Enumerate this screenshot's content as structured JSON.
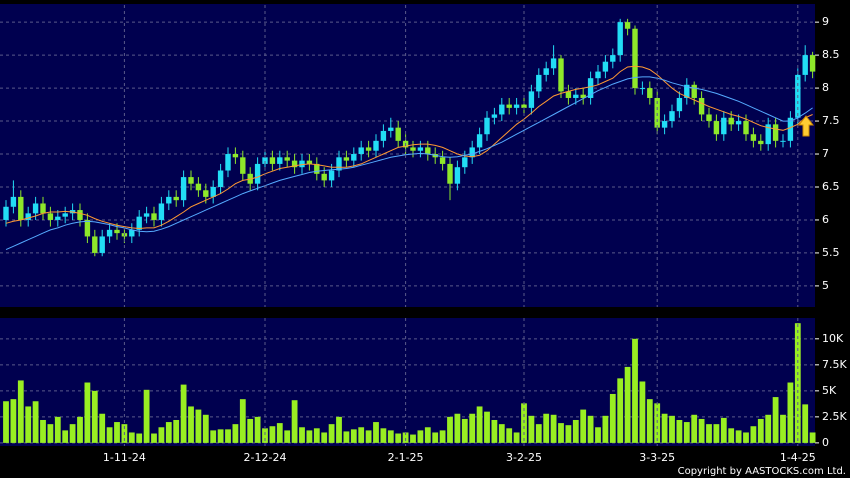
{
  "chart_data": [
    {
      "type": "candlestick",
      "up_color": "#22ddf5",
      "down_color": "#8ee82a",
      "open": [
        6.0,
        6.2,
        6.35,
        6.0,
        6.1,
        6.25,
        6.1,
        6.0,
        6.05,
        6.1,
        6.15,
        6.0,
        5.75,
        5.5,
        5.75,
        5.85,
        5.8,
        5.75,
        5.85,
        6.05,
        6.1,
        6.0,
        6.25,
        6.35,
        6.3,
        6.65,
        6.55,
        6.45,
        6.35,
        6.5,
        6.75,
        7.0,
        6.95,
        6.7,
        6.55,
        6.85,
        6.95,
        6.85,
        6.95,
        6.9,
        6.8,
        6.9,
        6.85,
        6.7,
        6.6,
        6.75,
        6.95,
        6.9,
        7.0,
        7.1,
        7.05,
        7.2,
        7.35,
        7.4,
        7.2,
        7.1,
        7.05,
        7.1,
        7.0,
        6.95,
        6.85,
        6.55,
        6.8,
        6.95,
        7.1,
        7.3,
        7.55,
        7.6,
        7.75,
        7.7,
        7.75,
        7.7,
        7.95,
        8.2,
        8.3,
        8.45,
        7.95,
        7.85,
        7.9,
        7.85,
        8.15,
        8.25,
        8.4,
        8.5,
        9.0,
        8.9,
        8.0,
        8.0,
        7.85,
        7.4,
        7.5,
        7.65,
        7.85,
        8.05,
        7.85,
        7.6,
        7.5,
        7.3,
        7.55,
        7.45,
        7.5,
        7.3,
        7.2,
        7.15,
        7.45,
        7.2,
        7.2,
        7.55,
        8.2,
        8.5
      ],
      "high": [
        6.3,
        6.6,
        6.45,
        6.2,
        6.35,
        6.35,
        6.2,
        6.15,
        6.2,
        6.25,
        6.25,
        6.1,
        5.85,
        5.85,
        5.95,
        5.95,
        5.9,
        5.95,
        6.15,
        6.2,
        6.2,
        6.35,
        6.45,
        6.45,
        6.75,
        6.75,
        6.65,
        6.55,
        6.6,
        6.85,
        7.1,
        7.1,
        7.05,
        6.8,
        6.95,
        7.05,
        7.05,
        7.05,
        7.05,
        7.0,
        7.0,
        7.0,
        6.95,
        6.8,
        6.85,
        7.05,
        7.05,
        7.1,
        7.2,
        7.2,
        7.3,
        7.45,
        7.55,
        7.5,
        7.3,
        7.2,
        7.2,
        7.2,
        7.1,
        7.05,
        6.95,
        6.9,
        7.05,
        7.2,
        7.4,
        7.65,
        7.7,
        7.85,
        7.85,
        7.85,
        7.85,
        8.05,
        8.3,
        8.4,
        8.65,
        8.5,
        8.05,
        8.0,
        8.0,
        8.25,
        8.35,
        8.5,
        8.6,
        9.05,
        9.05,
        8.95,
        8.1,
        8.1,
        7.95,
        7.6,
        7.75,
        7.95,
        8.15,
        8.1,
        7.95,
        7.7,
        7.6,
        7.65,
        7.65,
        7.6,
        7.6,
        7.4,
        7.3,
        7.55,
        7.55,
        7.3,
        7.65,
        8.3,
        8.65,
        8.55
      ],
      "low": [
        5.9,
        6.1,
        5.9,
        5.9,
        6.0,
        6.0,
        5.9,
        5.9,
        5.95,
        6.0,
        5.9,
        5.65,
        5.45,
        5.45,
        5.65,
        5.7,
        5.65,
        5.65,
        5.75,
        5.95,
        5.9,
        5.9,
        6.15,
        6.2,
        6.2,
        6.45,
        6.35,
        6.25,
        6.25,
        6.4,
        6.65,
        6.85,
        6.6,
        6.45,
        6.45,
        6.75,
        6.75,
        6.75,
        6.8,
        6.7,
        6.7,
        6.75,
        6.6,
        6.5,
        6.5,
        6.65,
        6.8,
        6.8,
        6.9,
        6.95,
        6.95,
        7.1,
        7.25,
        7.1,
        7.0,
        6.95,
        6.95,
        6.9,
        6.85,
        6.75,
        6.3,
        6.45,
        6.7,
        6.85,
        7.0,
        7.2,
        7.45,
        7.5,
        7.6,
        7.6,
        7.6,
        7.6,
        7.85,
        8.1,
        8.2,
        7.85,
        7.75,
        7.75,
        7.75,
        7.75,
        8.05,
        8.15,
        8.3,
        8.4,
        8.8,
        7.9,
        7.9,
        7.75,
        7.3,
        7.3,
        7.4,
        7.55,
        7.75,
        7.75,
        7.5,
        7.4,
        7.2,
        7.2,
        7.35,
        7.35,
        7.2,
        7.1,
        7.05,
        7.05,
        7.1,
        7.1,
        7.1,
        7.45,
        8.1,
        8.15
      ],
      "close": [
        6.2,
        6.35,
        6.0,
        6.1,
        6.25,
        6.1,
        6.0,
        6.05,
        6.1,
        6.15,
        6.0,
        5.75,
        5.5,
        5.75,
        5.85,
        5.8,
        5.75,
        5.85,
        6.05,
        6.1,
        6.0,
        6.25,
        6.35,
        6.3,
        6.65,
        6.55,
        6.45,
        6.35,
        6.5,
        6.75,
        7.0,
        6.95,
        6.7,
        6.55,
        6.85,
        6.95,
        6.85,
        6.95,
        6.9,
        6.8,
        6.9,
        6.85,
        6.7,
        6.6,
        6.75,
        6.95,
        6.9,
        7.0,
        7.1,
        7.05,
        7.2,
        7.35,
        7.4,
        7.2,
        7.1,
        7.05,
        7.1,
        7.0,
        6.95,
        6.85,
        6.55,
        6.8,
        6.95,
        7.1,
        7.3,
        7.55,
        7.6,
        7.75,
        7.7,
        7.75,
        7.7,
        7.95,
        8.2,
        8.3,
        8.45,
        7.95,
        7.85,
        7.9,
        7.85,
        8.15,
        8.25,
        8.4,
        8.5,
        9.0,
        8.9,
        8.0,
        8.0,
        7.85,
        7.4,
        7.5,
        7.65,
        7.85,
        8.05,
        7.85,
        7.6,
        7.5,
        7.3,
        7.55,
        7.45,
        7.5,
        7.3,
        7.2,
        7.15,
        7.45,
        7.2,
        7.2,
        7.55,
        8.2,
        8.5,
        8.25
      ],
      "series": [
        {
          "color": "#ff9933",
          "values": [
            5.95,
            5.98,
            6.0,
            6.03,
            6.06,
            6.1,
            6.12,
            6.12,
            6.13,
            6.12,
            6.1,
            6.07,
            6.02,
            5.98,
            5.95,
            5.92,
            5.9,
            5.88,
            5.87,
            5.88,
            5.88,
            5.92,
            5.98,
            6.05,
            6.12,
            6.2,
            6.25,
            6.3,
            6.35,
            6.4,
            6.47,
            6.55,
            6.6,
            6.62,
            6.65,
            6.7,
            6.74,
            6.78,
            6.8,
            6.82,
            6.84,
            6.85,
            6.84,
            6.82,
            6.8,
            6.8,
            6.8,
            6.82,
            6.85,
            6.9,
            6.95,
            7.0,
            7.05,
            7.1,
            7.12,
            7.14,
            7.15,
            7.15,
            7.13,
            7.1,
            7.05,
            7.0,
            6.97,
            6.96,
            6.98,
            7.05,
            7.15,
            7.25,
            7.35,
            7.45,
            7.53,
            7.62,
            7.72,
            7.8,
            7.88,
            7.92,
            7.95,
            7.98,
            8.0,
            8.02,
            8.05,
            8.1,
            8.15,
            8.25,
            8.32,
            8.33,
            8.32,
            8.28,
            8.2,
            8.1,
            8.0,
            7.92,
            7.87,
            7.82,
            7.77,
            7.72,
            7.68,
            7.64,
            7.6,
            7.57,
            7.53,
            7.48,
            7.43,
            7.4,
            7.38,
            7.36,
            7.4,
            7.45,
            7.55,
            7.6
          ]
        },
        {
          "color": "#55aaff",
          "values": [
            5.55,
            5.6,
            5.65,
            5.7,
            5.75,
            5.8,
            5.85,
            5.88,
            5.92,
            5.95,
            5.97,
            5.98,
            5.97,
            5.95,
            5.93,
            5.9,
            5.88,
            5.85,
            5.83,
            5.82,
            5.83,
            5.86,
            5.9,
            5.95,
            6.0,
            6.05,
            6.1,
            6.15,
            6.2,
            6.25,
            6.3,
            6.35,
            6.4,
            6.44,
            6.48,
            6.52,
            6.56,
            6.6,
            6.63,
            6.66,
            6.69,
            6.72,
            6.74,
            6.75,
            6.76,
            6.77,
            6.78,
            6.8,
            6.83,
            6.86,
            6.89,
            6.92,
            6.95,
            6.97,
            6.99,
            7.0,
            7.01,
            7.0,
            6.98,
            6.96,
            6.95,
            6.96,
            6.98,
            7.0,
            7.04,
            7.08,
            7.13,
            7.18,
            7.24,
            7.3,
            7.36,
            7.42,
            7.48,
            7.54,
            7.6,
            7.66,
            7.72,
            7.78,
            7.84,
            7.9,
            7.96,
            8.01,
            8.06,
            8.1,
            8.14,
            8.16,
            8.17,
            8.17,
            8.15,
            8.12,
            8.08,
            8.05,
            8.02,
            8.0,
            7.98,
            7.95,
            7.92,
            7.88,
            7.84,
            7.8,
            7.75,
            7.7,
            7.65,
            7.6,
            7.55,
            7.5,
            7.5,
            7.55,
            7.62,
            7.7
          ]
        }
      ],
      "ylim": [
        4.68,
        9.26
      ],
      "yticks": [
        5,
        5.5,
        6,
        6.5,
        7,
        7.5,
        8,
        8.5,
        9
      ],
      "grid": true
    },
    {
      "type": "bar",
      "color": "#99ee22",
      "categories": [
        null,
        null,
        null,
        null,
        null,
        null,
        null,
        null,
        null,
        null,
        null,
        null,
        null,
        null,
        null,
        null,
        "1-11-24",
        null,
        null,
        null,
        null,
        null,
        null,
        null,
        null,
        null,
        null,
        null,
        null,
        null,
        null,
        null,
        null,
        null,
        null,
        "2-12-24",
        null,
        null,
        null,
        null,
        null,
        null,
        null,
        null,
        null,
        null,
        null,
        null,
        null,
        null,
        null,
        null,
        null,
        null,
        "2-1-25",
        null,
        null,
        null,
        null,
        null,
        null,
        null,
        null,
        null,
        null,
        null,
        null,
        null,
        null,
        null,
        "3-2-25",
        null,
        null,
        null,
        null,
        null,
        null,
        null,
        null,
        null,
        null,
        null,
        null,
        null,
        null,
        null,
        null,
        null,
        "3-3-25",
        null,
        null,
        null,
        null,
        null,
        null,
        null,
        null,
        null,
        null,
        null,
        null,
        null,
        null,
        null,
        null,
        null,
        null,
        "1-4-25",
        null,
        null
      ],
      "values": [
        4000,
        4200,
        6000,
        3500,
        4000,
        2200,
        1800,
        2500,
        1200,
        1800,
        2500,
        5800,
        5000,
        2800,
        1500,
        2000,
        1800,
        1000,
        900,
        5100,
        900,
        1500,
        2000,
        2200,
        5600,
        3500,
        3200,
        2700,
        1200,
        1300,
        1300,
        1800,
        4200,
        2300,
        2500,
        1400,
        1600,
        1900,
        1200,
        4100,
        1500,
        1200,
        1400,
        1000,
        1800,
        2500,
        1100,
        1300,
        1500,
        1200,
        2000,
        1400,
        1200,
        900,
        1000,
        800,
        1200,
        1500,
        1000,
        1200,
        2500,
        2800,
        2300,
        2800,
        3500,
        3000,
        2200,
        1800,
        1400,
        1000,
        3800,
        2600,
        1800,
        2800,
        2700,
        1900,
        1700,
        2200,
        3200,
        2600,
        1500,
        2600,
        4700,
        6200,
        7300,
        10000,
        5900,
        4200,
        3800,
        2800,
        2600,
        2200,
        2000,
        2700,
        2300,
        1800,
        1800,
        2400,
        1400,
        1200,
        1000,
        1600,
        2300,
        2700,
        4400,
        2700,
        5800,
        11500,
        3700,
        1000
      ],
      "ylim": [
        -300,
        12000
      ],
      "yticks": [
        0,
        {
          "value": 2500,
          "label": "2.5K"
        },
        {
          "value": 5000,
          "label": "5K"
        },
        {
          "value": 7500,
          "label": "7.5K"
        },
        {
          "value": 10000,
          "label": "10K"
        }
      ],
      "grid": true
    }
  ],
  "copyright": "Copyright by AASTOCKS.com Ltd."
}
